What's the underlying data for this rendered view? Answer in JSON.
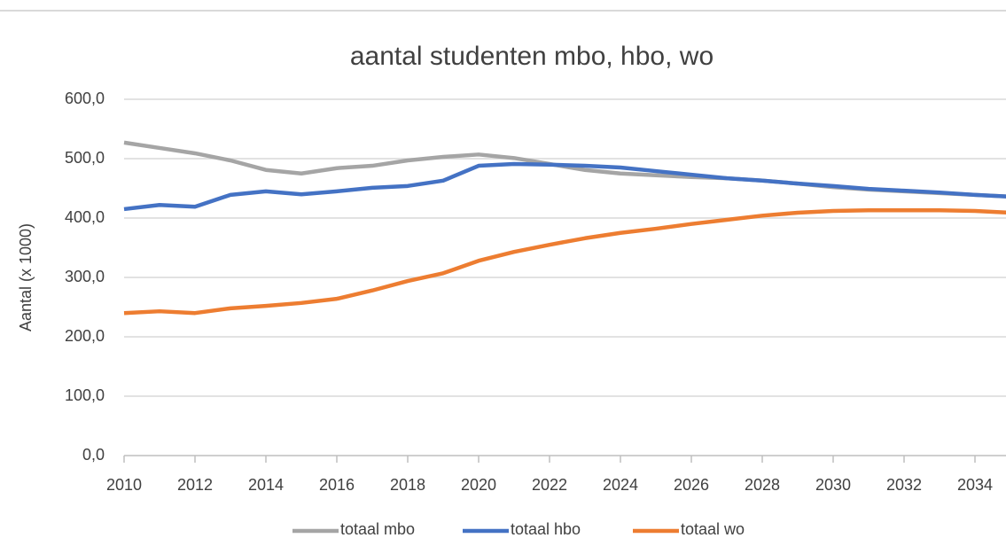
{
  "chart_data": {
    "type": "line",
    "title": "aantal studenten mbo, hbo, wo",
    "y_label": "Aantal (x 1000)",
    "x": [
      2010,
      2011,
      2012,
      2013,
      2014,
      2015,
      2016,
      2017,
      2018,
      2019,
      2020,
      2021,
      2022,
      2023,
      2024,
      2025,
      2026,
      2027,
      2028,
      2029,
      2030,
      2031,
      2032,
      2033,
      2034,
      2035
    ],
    "series": [
      {
        "name": "totaal mbo",
        "color": "#a5a5a5",
        "values": [
          527,
          518,
          509,
          497,
          481,
          475,
          484,
          488,
          497,
          503,
          507,
          501,
          491,
          481,
          475,
          472,
          469,
          467,
          463,
          458,
          452,
          448,
          445,
          442,
          439,
          436
        ]
      },
      {
        "name": "totaal hbo",
        "color": "#4472c4",
        "values": [
          415,
          422,
          419,
          439,
          445,
          440,
          445,
          451,
          454,
          463,
          488,
          491,
          490,
          488,
          485,
          479,
          473,
          467,
          463,
          458,
          454,
          449,
          446,
          443,
          439,
          436
        ]
      },
      {
        "name": "totaal wo",
        "color": "#ed7d31",
        "values": [
          240,
          243,
          240,
          248,
          252,
          257,
          264,
          278,
          294,
          307,
          328,
          343,
          355,
          366,
          375,
          382,
          390,
          397,
          404,
          409,
          412,
          413,
          413,
          413,
          412,
          409
        ]
      }
    ],
    "xlim": [
      2010,
      2035
    ],
    "xticks": [
      2010,
      2012,
      2014,
      2016,
      2018,
      2020,
      2022,
      2024,
      2026,
      2028,
      2030,
      2032,
      2034
    ],
    "ylim": [
      0,
      600
    ],
    "yticks": [
      {
        "value": 0,
        "label": "0,0"
      },
      {
        "value": 100,
        "label": "100,0"
      },
      {
        "value": 200,
        "label": "200,0"
      },
      {
        "value": 300,
        "label": "300,0"
      },
      {
        "value": 400,
        "label": "400,0"
      },
      {
        "value": 500,
        "label": "500,0"
      },
      {
        "value": 600,
        "label": "600,0"
      }
    ],
    "grid": true,
    "legend": "bottom"
  }
}
